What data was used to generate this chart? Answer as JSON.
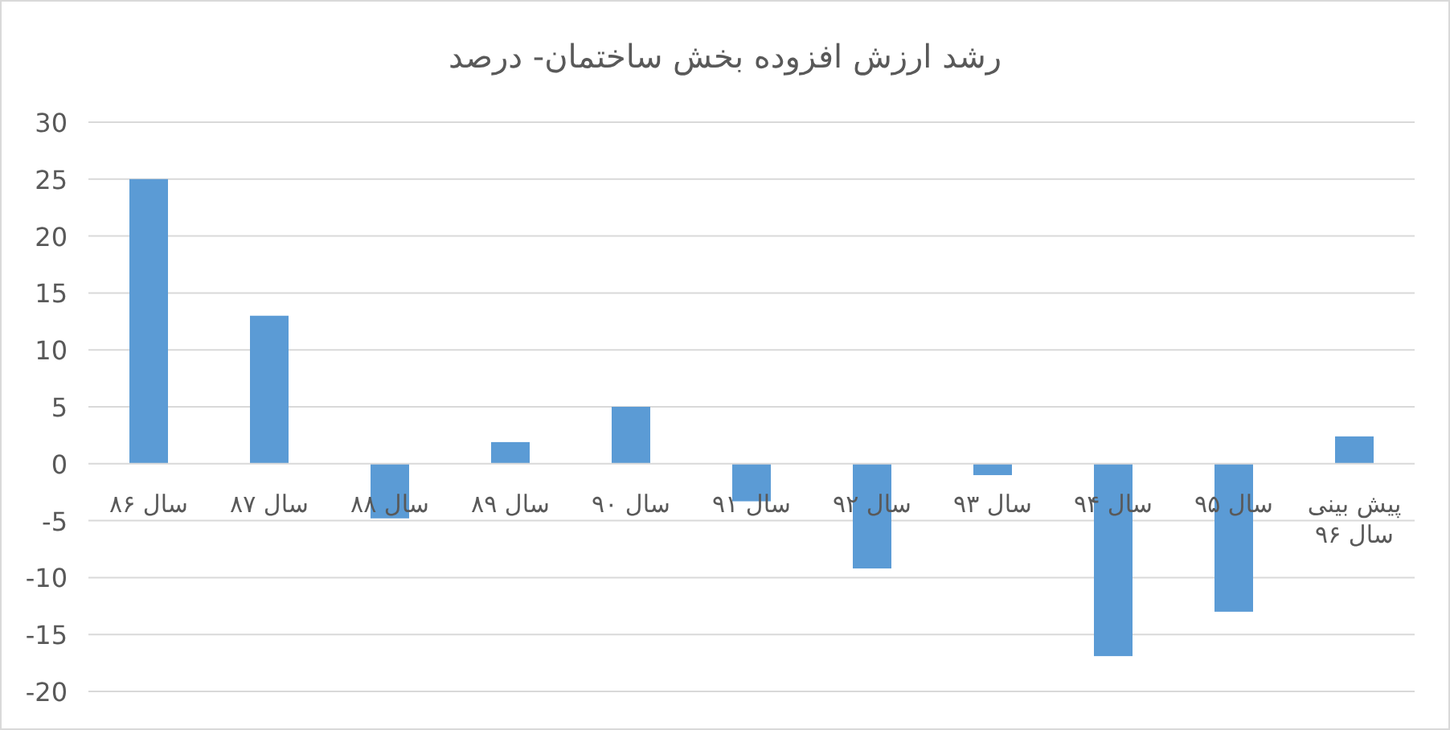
{
  "chart_data": {
    "type": "bar",
    "title": "رشد ارزش افزوده بخش ساختمان- درصد",
    "categories": [
      "سال ۸۶",
      "سال ۸۷",
      "سال ۸۸",
      "سال ۸۹",
      "سال ۹۰",
      "سال ۹۱",
      "سال ۹۲",
      "سال ۹۳",
      "سال ۹۴",
      "سال ۹۵",
      "پیش بینی سال ۹۶"
    ],
    "values": [
      25,
      13,
      -4.8,
      1.9,
      5,
      -3.3,
      -9.2,
      -1,
      -16.9,
      -13,
      2.4
    ],
    "color": "#5b9bd5",
    "ylim": [
      -20,
      30
    ],
    "yticks": [
      -20,
      -15,
      -10,
      -5,
      0,
      5,
      10,
      15,
      20,
      25,
      30
    ],
    "grid": "y"
  }
}
